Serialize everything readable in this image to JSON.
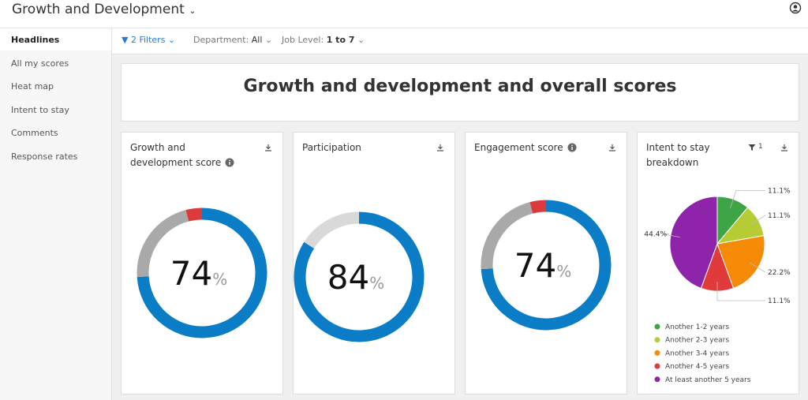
{
  "header": {
    "title": "Growth and Development"
  },
  "sidebar": {
    "items": [
      "Headlines",
      "All my scores",
      "Heat map",
      "Intent to stay",
      "Comments",
      "Response rates"
    ]
  },
  "filters": {
    "filter_count": "2 Filters",
    "department_label": "Department:",
    "department_value": "All",
    "job_level_label": "Job Level:",
    "job_level_value": "1 to 7"
  },
  "banner": {
    "title": "Growth and development and overall scores"
  },
  "cards": [
    {
      "title": "Growth and development score",
      "type": "donut",
      "values": [
        74,
        22,
        4
      ],
      "colors": [
        "#0a7dc6",
        "#a9a9a9",
        "#dc3b3b"
      ],
      "unit": "%"
    },
    {
      "title": "Participation",
      "type": "donut",
      "values": [
        84,
        16
      ],
      "colors": [
        "#0a7dc6",
        "#d9d9d9"
      ],
      "unit": "%"
    },
    {
      "title": "Engagement score",
      "type": "donut",
      "values": [
        74,
        22,
        4
      ],
      "colors": [
        "#0a7dc6",
        "#a9a9a9",
        "#dc3b3b"
      ],
      "unit": "%"
    },
    {
      "title": "Intent to stay breakdown",
      "type": "pie",
      "filter_badge": "1",
      "categories": [
        "Another 1-2 years",
        "Another 2-3 years",
        "Another 3-4 years",
        "Another 4-5 years",
        "At least another 5 years"
      ],
      "values": [
        11.1,
        11.1,
        22.2,
        11.1,
        44.4
      ],
      "value_labels": [
        "11.1%",
        "11.1%",
        "22.2%",
        "11.1%",
        "44.4%"
      ],
      "colors": [
        "#3ea547",
        "#b7cc34",
        "#f58a07",
        "#e03a3a",
        "#8e24aa"
      ]
    }
  ]
}
